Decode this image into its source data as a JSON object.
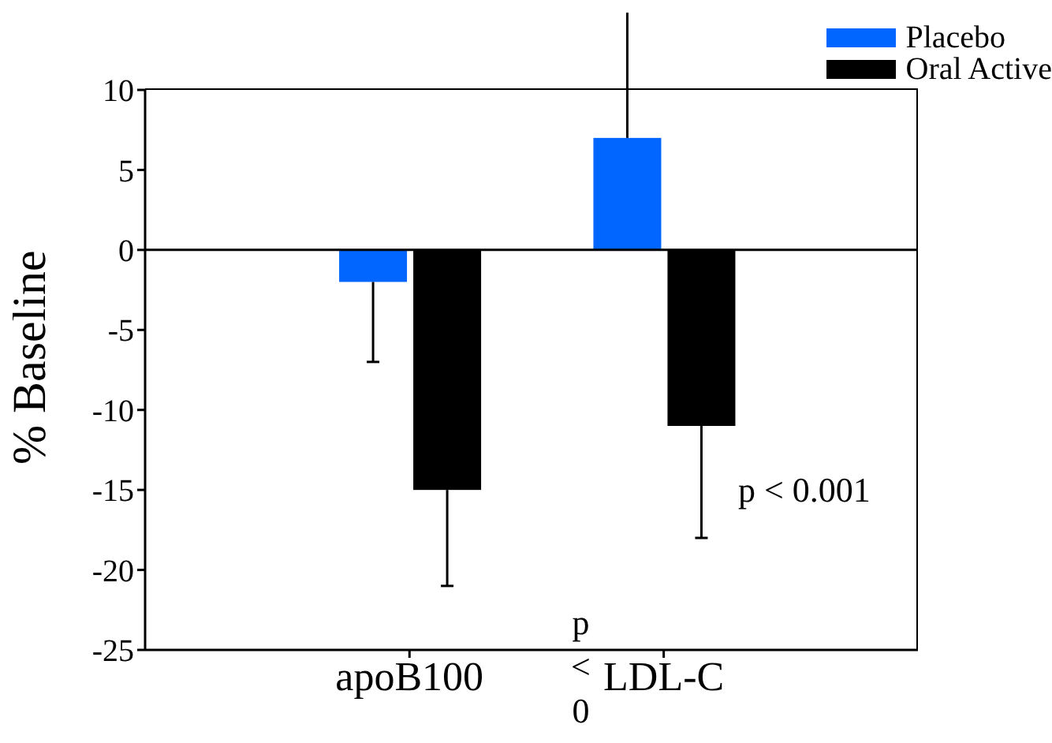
{
  "chart_data": {
    "type": "bar",
    "categories": [
      "apoB100",
      "LDL-C"
    ],
    "ylabel": "% Baseline",
    "series": [
      {
        "name": "Placebo",
        "color": "#0066ff",
        "values": [
          -2,
          7
        ],
        "errors": [
          5,
          8
        ]
      },
      {
        "name": "Oral Active",
        "color": "#000000",
        "values": [
          -15,
          -11
        ],
        "errors": [
          6,
          7
        ]
      }
    ],
    "ylim": [
      -25,
      10
    ],
    "yticks": [
      -25,
      -20,
      -15,
      -10,
      -5,
      0,
      5,
      10
    ],
    "grid": false,
    "legend": "top right",
    "ref_lines": [
      {
        "axis": "y",
        "value": 0
      }
    ],
    "annotations": [
      "p < 0.001",
      "p < 0"
    ]
  }
}
